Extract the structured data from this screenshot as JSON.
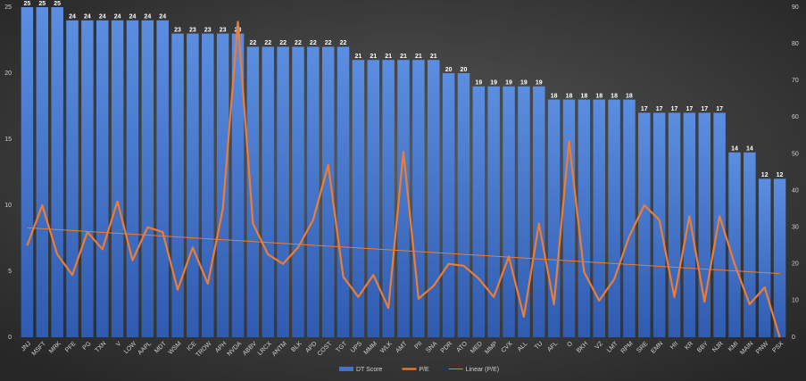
{
  "chart_data": {
    "type": "bar",
    "categories": [
      "JNJ",
      "MSFT",
      "MRK",
      "PFE",
      "PG",
      "TXN",
      "V",
      "LOW",
      "AAPL",
      "MDT",
      "WSM",
      "ICE",
      "TROW",
      "APH",
      "NVDA",
      "ABBV",
      "LRCX",
      "ANTM",
      "BLK",
      "APD",
      "COST",
      "TGT",
      "UPS",
      "MMM",
      "WLK",
      "AMT",
      "PII",
      "SNA",
      "PDR",
      "ATO",
      "MED",
      "MMP",
      "CVX",
      "ALL",
      "TU",
      "AFL",
      "O",
      "BKH",
      "VZ",
      "LMT",
      "RPM",
      "SRE",
      "EMN",
      "HII",
      "KR",
      "BBY",
      "NJR",
      "KMI",
      "MAIN",
      "PNW",
      "PSX"
    ],
    "series": [
      {
        "name": "DT Score",
        "color": "#4472c4",
        "type": "bar",
        "values": [
          25,
          25,
          25,
          24,
          24,
          24,
          24,
          24,
          24,
          24,
          23,
          23,
          23,
          23,
          23,
          22,
          22,
          22,
          22,
          22,
          22,
          22,
          21,
          21,
          21,
          21,
          21,
          21,
          20,
          20,
          19,
          19,
          19,
          19,
          19,
          18,
          18,
          18,
          18,
          18,
          18,
          17,
          17,
          17,
          17,
          17,
          17,
          14,
          14,
          12,
          12
        ]
      },
      {
        "name": "P/E",
        "color": "#ed7d31",
        "type": "line",
        "axis": "y2",
        "values": [
          25,
          36,
          22.6,
          17,
          28.7,
          24,
          37,
          21,
          30,
          28.7,
          13,
          24.5,
          14.6,
          35,
          86,
          31,
          22.6,
          20,
          24.5,
          32,
          47,
          16.5,
          11,
          17,
          8,
          50.6,
          10.5,
          14,
          20,
          19.5,
          16,
          11,
          22,
          5.6,
          31,
          9,
          53.5,
          17.8,
          10,
          15.8,
          27.5,
          36,
          32,
          11,
          33,
          9.7,
          33,
          20,
          9,
          13.6,
          0
        ]
      }
    ],
    "trendline": {
      "name": "Linear (P/E)",
      "color": "#ed7d31",
      "of": "P/E"
    },
    "ylim": [
      0,
      25
    ],
    "yticks": [
      0,
      5,
      10,
      15,
      20,
      25
    ],
    "y2lim": [
      0,
      90
    ],
    "y2ticks": [
      0,
      10,
      20,
      30,
      40,
      50,
      60,
      70,
      80,
      90
    ],
    "grid": false,
    "legend": "bottom"
  }
}
